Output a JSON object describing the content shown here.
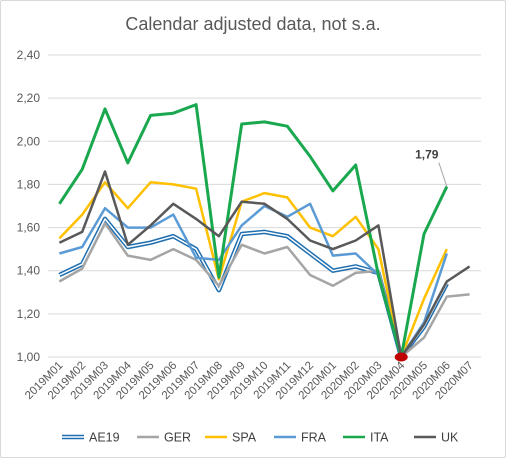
{
  "chart_data": {
    "type": "line",
    "title": "Calendar adjusted data, not s.a.",
    "xlabel": "",
    "ylabel": "",
    "ylim": [
      1.0,
      2.4
    ],
    "yticks": [
      "1,00",
      "1,20",
      "1,40",
      "1,60",
      "1,80",
      "2,00",
      "2,20",
      "2,40"
    ],
    "ytick_values": [
      1.0,
      1.2,
      1.4,
      1.6,
      1.8,
      2.0,
      2.2,
      2.4
    ],
    "grid": "horizontal",
    "legend_position": "bottom",
    "categories": [
      "2019M01",
      "2019M02",
      "2019M03",
      "2019M04",
      "2019M05",
      "2019M06",
      "2019M07",
      "2019M08",
      "2019M09",
      "2019M10",
      "2019M11",
      "2019M12",
      "2020M01",
      "2020M02",
      "2020M03",
      "2020M04",
      "2020M05",
      "2020M06",
      "2020M07"
    ],
    "series": [
      {
        "name": "AE19",
        "color": "#1f6fb0",
        "style": "double",
        "values": [
          1.38,
          1.43,
          1.64,
          1.51,
          1.53,
          1.56,
          1.5,
          1.31,
          1.57,
          1.58,
          1.56,
          1.48,
          1.4,
          1.42,
          1.39,
          1.0,
          1.14,
          1.34,
          null
        ]
      },
      {
        "name": "GER",
        "color": "#a5a5a5",
        "style": "solid",
        "values": [
          1.35,
          1.41,
          1.62,
          1.47,
          1.45,
          1.5,
          1.45,
          1.33,
          1.52,
          1.48,
          1.51,
          1.38,
          1.33,
          1.39,
          1.4,
          1.0,
          1.09,
          1.28,
          1.29
        ]
      },
      {
        "name": "SPA",
        "color": "#ffc000",
        "style": "solid",
        "values": [
          1.55,
          1.66,
          1.81,
          1.69,
          1.81,
          1.8,
          1.78,
          1.36,
          1.72,
          1.76,
          1.74,
          1.6,
          1.56,
          1.65,
          1.5,
          1.0,
          1.27,
          1.5,
          null
        ]
      },
      {
        "name": "FRA",
        "color": "#5b9bd5",
        "style": "solid",
        "values": [
          1.48,
          1.51,
          1.69,
          1.6,
          1.6,
          1.66,
          1.46,
          1.45,
          1.61,
          1.7,
          1.65,
          1.71,
          1.47,
          1.48,
          1.38,
          1.0,
          1.16,
          1.48,
          null
        ]
      },
      {
        "name": "ITA",
        "color": "#1aa84f",
        "style": "solid",
        "values": [
          1.71,
          1.87,
          2.15,
          1.9,
          2.12,
          2.13,
          2.17,
          1.37,
          2.08,
          2.09,
          2.07,
          1.93,
          1.77,
          1.89,
          1.38,
          1.0,
          1.57,
          1.79,
          null
        ]
      },
      {
        "name": "UK",
        "color": "#595959",
        "style": "solid",
        "values": [
          1.53,
          1.58,
          1.86,
          1.52,
          1.61,
          1.71,
          1.64,
          1.56,
          1.72,
          1.71,
          1.64,
          1.54,
          1.5,
          1.54,
          1.61,
          1.0,
          1.15,
          1.35,
          1.42
        ]
      }
    ],
    "annotations": [
      {
        "text": "1,79",
        "series": "ITA",
        "category": "2020M06",
        "value": 1.79
      }
    ],
    "markers": [
      {
        "category": "2020M04",
        "value": 1.0,
        "color": "#c00000"
      }
    ]
  }
}
